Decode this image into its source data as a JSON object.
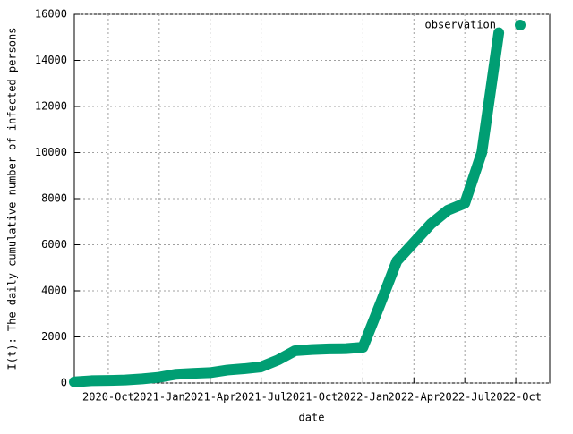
{
  "chart_data": {
    "type": "line",
    "xlabel": "date",
    "ylabel": "I(t): The daily cumulative number of infected persons",
    "x": [
      "2020-08",
      "2020-09",
      "2020-10",
      "2020-11",
      "2020-12",
      "2021-01",
      "2021-02",
      "2021-03",
      "2021-04",
      "2021-05",
      "2021-06",
      "2021-07",
      "2021-08",
      "2021-09",
      "2021-10",
      "2021-11",
      "2021-12",
      "2022-01",
      "2022-02",
      "2022-03",
      "2022-04",
      "2022-05",
      "2022-06",
      "2022-07",
      "2022-08",
      "2022-09"
    ],
    "series": [
      {
        "name": "observation",
        "color": "#009e73",
        "values": [
          50,
          100,
          110,
          130,
          180,
          250,
          380,
          420,
          450,
          560,
          620,
          700,
          1000,
          1400,
          1450,
          1480,
          1490,
          1550,
          3400,
          5300,
          6100,
          6900,
          7500,
          7800,
          10000,
          15200
        ]
      }
    ],
    "xlim": [
      "2020-08",
      "2022-12"
    ],
    "xticks": [
      {
        "value": "2020-10",
        "label": "2020-Oct"
      },
      {
        "value": "2021-01",
        "label": "2021-Jan"
      },
      {
        "value": "2021-04",
        "label": "2021-Apr"
      },
      {
        "value": "2021-07",
        "label": "2021-Jul"
      },
      {
        "value": "2021-10",
        "label": "2021-Oct"
      },
      {
        "value": "2022-01",
        "label": "2022-Jan"
      },
      {
        "value": "2022-04",
        "label": "2022-Apr"
      },
      {
        "value": "2022-07",
        "label": "2022-Jul"
      },
      {
        "value": "2022-10",
        "label": "2022-Oct"
      }
    ],
    "ylim": [
      0,
      16000
    ],
    "yticks": [
      0,
      2000,
      4000,
      6000,
      8000,
      10000,
      12000,
      14000,
      16000
    ],
    "grid": true,
    "legend": "top-right"
  }
}
